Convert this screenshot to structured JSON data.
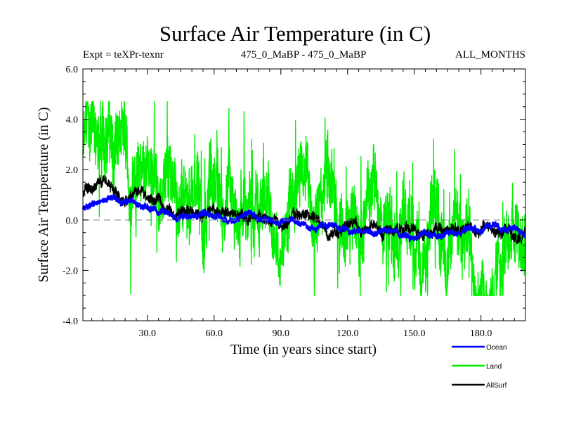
{
  "chart_data": {
    "type": "line",
    "title": "Surface Air Temperature (in C)",
    "subtitle_left": "Expt = teXPr-texnr",
    "subtitle_center": "475_0_MaBP - 475_0_MaBP",
    "subtitle_right": "ALL_MONTHS",
    "xlabel": "Time (in years since start)",
    "ylabel": "Surface Air Temperature (in C)",
    "xlim": [
      1,
      200
    ],
    "ylim": [
      -4.0,
      6.0
    ],
    "x_ticks": [
      30,
      60,
      90,
      120,
      150,
      180
    ],
    "x_tick_labels": [
      "30.0",
      "60.0",
      "90.0",
      "120.0",
      "150.0",
      "180.0"
    ],
    "y_ticks": [
      -4,
      -2,
      0,
      2,
      4,
      6
    ],
    "y_tick_labels": [
      "-4.0",
      "-2.0",
      "0.0",
      "2.0",
      "4.0",
      "6.0"
    ],
    "zero_line": true,
    "series": [
      {
        "name": "Land",
        "color": "#00ee00",
        "trend_x": [
          1,
          10,
          20,
          30,
          40,
          50,
          60,
          70,
          80,
          90,
          100,
          110,
          120,
          130,
          140,
          150,
          160,
          170,
          180,
          190,
          200
        ],
        "trend_y": [
          2.8,
          2.5,
          2.2,
          1.9,
          1.65,
          1.4,
          1.2,
          1.0,
          0.8,
          0.6,
          0.4,
          0.2,
          0.0,
          -0.15,
          -0.3,
          -0.35,
          -0.3,
          -0.2,
          -0.15,
          -0.2,
          -0.3
        ],
        "range_min": -3.0,
        "range_max": 4.7
      },
      {
        "name": "Ocean",
        "color": "#0000ff",
        "trend_x": [
          1,
          5,
          10,
          20,
          30,
          40,
          50,
          60,
          70,
          80,
          90,
          100,
          110,
          120,
          130,
          140,
          150,
          160,
          170,
          180,
          190,
          200
        ],
        "trend_y": [
          0.5,
          0.6,
          0.8,
          0.8,
          0.5,
          0.3,
          0.2,
          0.1,
          0.05,
          0.0,
          -0.05,
          -0.1,
          -0.25,
          -0.35,
          -0.45,
          -0.5,
          -0.5,
          -0.45,
          -0.4,
          -0.35,
          -0.35,
          -0.55
        ]
      },
      {
        "name": "AllSurf",
        "color": "#000000",
        "trend_x": [
          1,
          5,
          10,
          20,
          30,
          40,
          50,
          60,
          70,
          80,
          90,
          100,
          110,
          120,
          130,
          140,
          150,
          160,
          170,
          180,
          190,
          200
        ],
        "trend_y": [
          0.9,
          1.0,
          1.1,
          0.9,
          0.6,
          0.4,
          0.3,
          0.2,
          0.15,
          0.05,
          0.0,
          -0.05,
          -0.2,
          -0.3,
          -0.4,
          -0.45,
          -0.45,
          -0.4,
          -0.35,
          -0.3,
          -0.3,
          -0.5
        ]
      }
    ],
    "legend": {
      "placement": "bottom-right",
      "entries": [
        "Ocean",
        "Land",
        "AllSurf"
      ]
    }
  }
}
